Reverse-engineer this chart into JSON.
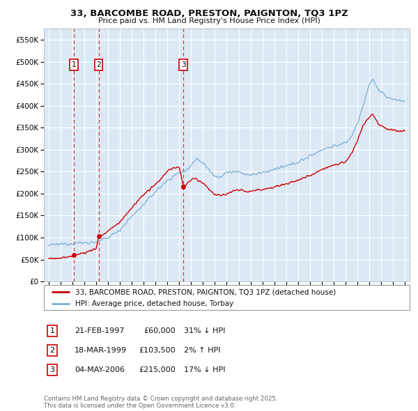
{
  "title": "33, BARCOMBE ROAD, PRESTON, PAIGNTON, TQ3 1PZ",
  "subtitle": "Price paid vs. HM Land Registry's House Price Index (HPI)",
  "ylim": [
    0,
    575000
  ],
  "yticks": [
    0,
    50000,
    100000,
    150000,
    200000,
    250000,
    300000,
    350000,
    400000,
    450000,
    500000,
    550000
  ],
  "ytick_labels": [
    "£0",
    "£50K",
    "£100K",
    "£150K",
    "£200K",
    "£250K",
    "£300K",
    "£350K",
    "£400K",
    "£450K",
    "£500K",
    "£550K"
  ],
  "xlim_start": 1994.6,
  "xlim_end": 2025.4,
  "plot_bg_color": "#dce9f5",
  "grid_color": "#ffffff",
  "line_color_red": "#cc0000",
  "line_color_blue": "#7aaed6",
  "transactions": [
    {
      "num": 1,
      "price": 60000,
      "x": 1997.12
    },
    {
      "num": 2,
      "price": 103500,
      "x": 1999.21
    },
    {
      "num": 3,
      "price": 215000,
      "x": 2006.34
    }
  ],
  "legend_line1": "33, BARCOMBE ROAD, PRESTON, PAIGNTON, TQ3 1PZ (detached house)",
  "legend_line2": "HPI: Average price, detached house, Torbay",
  "footer": "Contains HM Land Registry data © Crown copyright and database right 2025.\nThis data is licensed under the Open Government Licence v3.0.",
  "table_rows": [
    {
      "num": "1",
      "date": "21-FEB-1997",
      "price": "£60,000",
      "rel": "31% ↓ HPI"
    },
    {
      "num": "2",
      "date": "18-MAR-1999",
      "price": "£103,500",
      "rel": "2% ↑ HPI"
    },
    {
      "num": "3",
      "date": "04-MAY-2006",
      "price": "£215,000",
      "rel": "17% ↓ HPI"
    }
  ]
}
